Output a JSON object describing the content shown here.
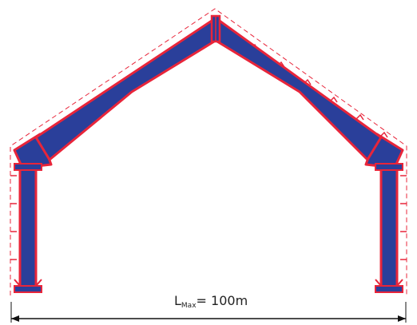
{
  "diagram": {
    "span_label": {
      "main": "L",
      "subscript": "Max",
      "equals_value": "= 100m"
    }
  },
  "colors": {
    "steel_fill": "#2a3f9a",
    "outline": "#e8253a",
    "dashed": "#e8253a",
    "dimension_line": "#111111",
    "background": "#ffffff"
  }
}
